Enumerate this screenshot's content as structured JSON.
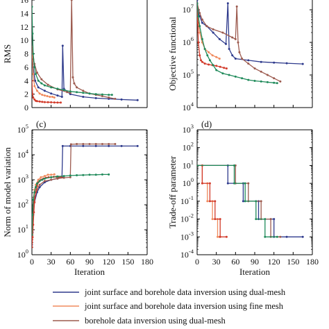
{
  "chart_data": [
    {
      "id": "a",
      "type": "line",
      "panel_label": "",
      "xlabel": "",
      "ylabel": "RMS",
      "yscale": "linear",
      "xlim": [
        0,
        180
      ],
      "ylim": [
        0,
        16
      ],
      "yticks": [
        0,
        2,
        4,
        6,
        8,
        10,
        12,
        14,
        16
      ],
      "ytick_labels": [
        "0",
        "2",
        "4",
        "6",
        "8",
        "10",
        "12",
        "14",
        "16"
      ],
      "series": [
        {
          "ref": 0,
          "x": [
            0,
            2,
            5,
            10,
            20,
            30,
            40,
            47,
            48,
            50,
            60,
            80,
            100,
            120,
            140,
            165
          ],
          "y": [
            9,
            6,
            4,
            3,
            2.5,
            2.1,
            1.8,
            1.6,
            9.2,
            2.8,
            2.0,
            1.6,
            1.4,
            1.3,
            1.2,
            1.1
          ]
        },
        {
          "ref": 1,
          "x": [
            0,
            2,
            4,
            8,
            12,
            16,
            20,
            24,
            28,
            32,
            35
          ],
          "y": [
            9,
            5,
            3.2,
            2.5,
            2.1,
            1.9,
            1.8,
            1.7,
            1.6,
            1.6,
            1.5
          ]
        },
        {
          "ref": 2,
          "x": [
            0,
            2,
            4,
            8,
            15,
            25,
            40,
            55,
            60,
            62,
            64,
            66,
            70,
            80,
            90,
            100,
            110,
            120,
            130
          ],
          "y": [
            9,
            7.2,
            6.5,
            5.2,
            4.2,
            3.4,
            2.7,
            2.3,
            2.2,
            16,
            4.5,
            3.6,
            3.0,
            2.5,
            2.1,
            1.9,
            1.7,
            1.5,
            1.3
          ]
        },
        {
          "ref": 3,
          "x": [
            0,
            1,
            2,
            4,
            6,
            8,
            12,
            16,
            20,
            25,
            30,
            35,
            40,
            45
          ],
          "y": [
            4,
            2,
            1.5,
            1.2,
            1.0,
            0.95,
            0.9,
            0.85,
            0.82,
            0.8,
            0.78,
            0.76,
            0.75,
            0.74
          ]
        },
        {
          "ref": 4,
          "x": [
            0,
            1,
            2,
            4,
            6,
            10,
            15,
            20,
            30,
            40,
            50,
            60,
            70,
            80,
            90,
            100,
            110,
            120,
            125
          ],
          "y": [
            15,
            11,
            8,
            6,
            5,
            4,
            3.6,
            3.3,
            3.0,
            2.8,
            2.6,
            2.4,
            2.3,
            2.2,
            2.1,
            2.0,
            1.95,
            1.9,
            1.9
          ]
        }
      ]
    },
    {
      "id": "b",
      "type": "line",
      "panel_label": "",
      "xlabel": "",
      "ylabel": "Objective functional",
      "yscale": "log",
      "xlim": [
        0,
        180
      ],
      "ylim_exp": [
        4,
        7.3
      ],
      "yticks_exp": [
        4,
        5,
        6,
        7
      ],
      "ytick_base": "10",
      "series": [
        {
          "ref": 0,
          "x": [
            0,
            2,
            4,
            8,
            15,
            25,
            35,
            45,
            48,
            50,
            55,
            60,
            80,
            100,
            120,
            140,
            165
          ],
          "y_exp": [
            7.3,
            6.9,
            6.8,
            6.6,
            6.5,
            6.3,
            6.1,
            5.95,
            7.2,
            5.8,
            5.6,
            5.5,
            5.45,
            5.4,
            5.38,
            5.36,
            5.34
          ]
        },
        {
          "ref": 1,
          "x": [
            0,
            2,
            4,
            8,
            12,
            18,
            24,
            30,
            35
          ],
          "y_exp": [
            7.2,
            6.6,
            6.3,
            6.0,
            5.8,
            5.7,
            5.6,
            5.55,
            5.5
          ]
        },
        {
          "ref": 2,
          "x": [
            0,
            4,
            8,
            15,
            25,
            40,
            55,
            60,
            62,
            64,
            66,
            70,
            80,
            90,
            100,
            110,
            120,
            130
          ],
          "y_exp": [
            7.2,
            6.9,
            6.7,
            6.5,
            6.4,
            6.3,
            6.15,
            6.1,
            7.1,
            6.0,
            5.7,
            5.5,
            5.35,
            5.2,
            5.1,
            5.0,
            4.9,
            4.8
          ]
        },
        {
          "ref": 3,
          "x": [
            0,
            1,
            2,
            4,
            6,
            8,
            12,
            18,
            24,
            30,
            36,
            42,
            46
          ],
          "y_exp": [
            7.1,
            6.6,
            6.0,
            5.6,
            5.45,
            5.4,
            5.35,
            5.32,
            5.3,
            5.28,
            5.25,
            5.22,
            5.2
          ]
        },
        {
          "ref": 4,
          "x": [
            0,
            2,
            4,
            8,
            12,
            16,
            20,
            25,
            30,
            40,
            50,
            60,
            70,
            80,
            90,
            100,
            110,
            120,
            125
          ],
          "y_exp": [
            7.2,
            6.8,
            6.5,
            6.1,
            5.8,
            5.6,
            5.45,
            5.3,
            5.15,
            5.05,
            5.0,
            4.95,
            4.9,
            4.85,
            4.82,
            4.8,
            4.78,
            4.76,
            4.75
          ]
        }
      ]
    },
    {
      "id": "c",
      "type": "line",
      "panel_label": "(c)",
      "xlabel": "Iteration",
      "ylabel": "Norm of model variation",
      "yscale": "log",
      "xlim": [
        0,
        180
      ],
      "xticks": [
        0,
        30,
        60,
        90,
        120,
        150,
        180
      ],
      "xtick_labels": [
        "0",
        "30",
        "60",
        "90",
        "120",
        "150",
        "180"
      ],
      "ylim_exp": [
        0,
        5
      ],
      "yticks_exp": [
        0,
        1,
        2,
        3,
        4,
        5
      ],
      "ytick_base": "10",
      "series": [
        {
          "ref": 0,
          "x": [
            0,
            1,
            2,
            4,
            8,
            12,
            20,
            30,
            40,
            47,
            48,
            60,
            80,
            100,
            120,
            140,
            165
          ],
          "y_exp": [
            0.4,
            0.9,
            1.6,
            2.1,
            2.5,
            2.7,
            2.9,
            3.0,
            3.05,
            3.1,
            4.35,
            4.35,
            4.35,
            4.35,
            4.35,
            4.35,
            4.35
          ]
        },
        {
          "ref": 1,
          "x": [
            0,
            1,
            2,
            4,
            6,
            10,
            14,
            20,
            25,
            30,
            35
          ],
          "y_exp": [
            0.6,
            1.5,
            2.2,
            2.6,
            2.8,
            3.0,
            3.1,
            3.15,
            3.2,
            3.2,
            3.22
          ]
        },
        {
          "ref": 2,
          "x": [
            0,
            1,
            2,
            4,
            8,
            12,
            20,
            30,
            40,
            50,
            60,
            61,
            70,
            80,
            90,
            100,
            110,
            120,
            130
          ],
          "y_exp": [
            0.5,
            1.2,
            1.9,
            2.3,
            2.6,
            2.8,
            2.95,
            3.0,
            3.05,
            3.08,
            3.1,
            4.42,
            4.43,
            4.43,
            4.43,
            4.43,
            4.43,
            4.43,
            4.43
          ]
        },
        {
          "ref": 3,
          "x": [
            0,
            1,
            2,
            3,
            4,
            6,
            8,
            10,
            14,
            18,
            22,
            26,
            30,
            34,
            38,
            42,
            46
          ],
          "y_exp": [
            0.3,
            0.7,
            1.2,
            1.7,
            2.1,
            2.5,
            2.75,
            2.9,
            3.0,
            3.05,
            3.08,
            3.1,
            3.1,
            3.12,
            3.12,
            3.12,
            3.12
          ]
        },
        {
          "ref": 4,
          "x": [
            0,
            1,
            2,
            4,
            6,
            8,
            12,
            16,
            20,
            30,
            40,
            50,
            60,
            70,
            80,
            90,
            100,
            110,
            120
          ],
          "y_exp": [
            0.8,
            1.6,
            2.2,
            2.5,
            2.7,
            2.85,
            2.95,
            3.0,
            3.05,
            3.1,
            3.13,
            3.15,
            3.17,
            3.18,
            3.19,
            3.2,
            3.2,
            3.21,
            3.21
          ]
        }
      ]
    },
    {
      "id": "d",
      "type": "line",
      "panel_label": "(d)",
      "xlabel": "Iteration",
      "ylabel": "Trade-off parameter",
      "yscale": "log",
      "xlim": [
        0,
        180
      ],
      "xticks": [
        0,
        30,
        60,
        90,
        120,
        150,
        180
      ],
      "xtick_labels": [
        "0",
        "30",
        "60",
        "90",
        "120",
        "150",
        "180"
      ],
      "ylim_exp": [
        -4,
        3
      ],
      "yticks_exp": [
        -4,
        -3,
        -2,
        -1,
        0,
        1,
        2,
        3
      ],
      "ytick_base": "10",
      "series": [
        {
          "ref": 0,
          "x": [
            0,
            48,
            48,
            72,
            72,
            96,
            96,
            120,
            120,
            140,
            165
          ],
          "y_exp": [
            1,
            1,
            0,
            0,
            -1,
            -1,
            -2,
            -2,
            -3,
            -3,
            -3
          ]
        },
        {
          "ref": 1,
          "x": [
            0,
            8,
            8,
            16,
            16,
            24,
            24,
            32,
            32,
            35
          ],
          "y_exp": [
            1,
            1,
            0,
            0,
            -1,
            -1,
            -2,
            -2,
            -3,
            -3
          ]
        },
        {
          "ref": 2,
          "x": [
            0,
            60,
            60,
            80,
            80,
            100,
            100,
            115,
            115,
            130
          ],
          "y_exp": [
            1,
            1,
            0,
            0,
            -1,
            -1,
            -2,
            -2,
            -3,
            -3
          ]
        },
        {
          "ref": 3,
          "x": [
            0,
            8,
            8,
            20,
            20,
            28,
            28,
            36,
            36,
            46
          ],
          "y_exp": [
            1,
            1,
            0,
            0,
            -1,
            -1,
            -2,
            -2,
            -3,
            -3
          ]
        },
        {
          "ref": 4,
          "x": [
            0,
            58,
            58,
            75,
            75,
            92,
            92,
            106,
            106,
            125
          ],
          "y_exp": [
            1,
            1,
            0,
            0,
            -1,
            -1,
            -2,
            -2,
            -3,
            -3
          ]
        }
      ]
    }
  ],
  "legend": [
    {
      "label": "joint surface and borehole data inversion using dual-mesh",
      "color": "#2e3a8c"
    },
    {
      "label": "joint surface and borehole data inversion using fine mesh",
      "color": "#f08a5d"
    },
    {
      "label": "borehole data inversion using dual-mesh",
      "color": "#9c5a4e"
    }
  ],
  "series_colors": [
    "#2e3a8c",
    "#f08a5d",
    "#9c5a4e",
    "#d23b2b",
    "#1f8a5a"
  ]
}
